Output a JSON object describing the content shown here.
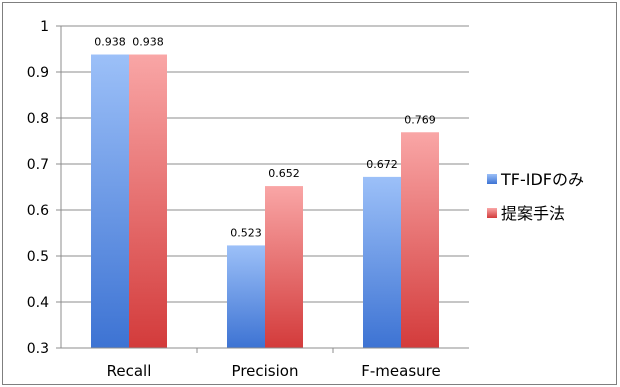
{
  "chart_data": {
    "type": "bar",
    "title": "",
    "xlabel": "",
    "ylabel": "",
    "categories": [
      "Recall",
      "Precision",
      "F-measure"
    ],
    "series": [
      {
        "name": "TF-IDFのみ",
        "values": [
          0.938,
          0.523,
          0.672
        ],
        "color": "#6f9fe6",
        "color_light": "#9cc0f8",
        "color_dark": "#3d73d3"
      },
      {
        "name": "提案手法",
        "values": [
          0.938,
          0.652,
          0.769
        ],
        "color": "#ea6f6f",
        "color_light": "#f9a6a6",
        "color_dark": "#d33b3b"
      }
    ],
    "data_labels": [
      [
        "0.938",
        "0.523",
        "0.672"
      ],
      [
        "0.938",
        "0.652",
        "0.769"
      ]
    ],
    "ylim": [
      0.3,
      1.0
    ],
    "yticks": [
      0.3,
      0.4,
      0.5,
      0.6,
      0.7,
      0.8,
      0.9,
      1.0
    ],
    "ytick_labels": [
      "0.3",
      "0.4",
      "0.5",
      "0.6",
      "0.7",
      "0.8",
      "0.9",
      "1"
    ],
    "grid": true,
    "legend_position": "right"
  }
}
